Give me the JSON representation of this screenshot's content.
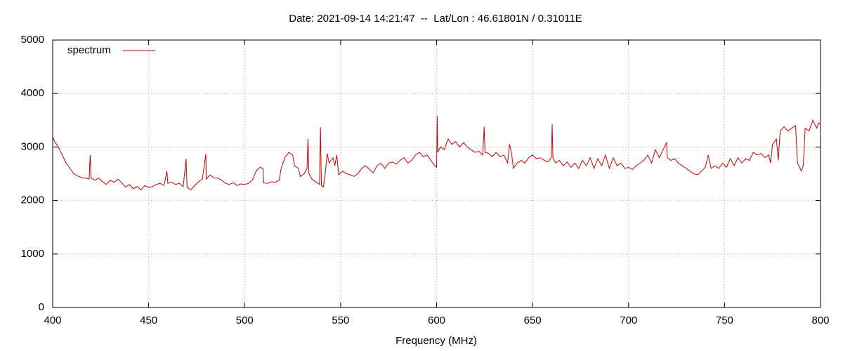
{
  "chart_data": {
    "type": "line",
    "title": "Date: 2021-09-14 14:21:47  --  Lat/Lon : 46.61801N / 0.31011E",
    "x_label": "Frequency (MHz)",
    "x": [
      400,
      401,
      403,
      405,
      407,
      409,
      411,
      413,
      415,
      417,
      419,
      419.5,
      420,
      422,
      424,
      426,
      428,
      430,
      432,
      434,
      436,
      438,
      440,
      442,
      444,
      446,
      448,
      450,
      452,
      454,
      456,
      458,
      459.5,
      460,
      462,
      464,
      466,
      468,
      469.5,
      470,
      472,
      474,
      476,
      478,
      479.8,
      480,
      482,
      484,
      486,
      488,
      490,
      492,
      494,
      496,
      498,
      500,
      502,
      504,
      506,
      508,
      509.5,
      510,
      512,
      514,
      516,
      518,
      519,
      521,
      523,
      525,
      526,
      528,
      529,
      531,
      532.5,
      533,
      533.5,
      535,
      537,
      539,
      539.5,
      540,
      541,
      542,
      543,
      544,
      546,
      547,
      548,
      549,
      551,
      553,
      555,
      557,
      559,
      561,
      563,
      565,
      567,
      569,
      571,
      573,
      575,
      577,
      579,
      581,
      583,
      585,
      587,
      589,
      591,
      593,
      595,
      597,
      599,
      600,
      600.3,
      600.6,
      602,
      604,
      606,
      608,
      610,
      612,
      614,
      616,
      618,
      620,
      622,
      624,
      624.8,
      625.2,
      627,
      629,
      631,
      633,
      635,
      636,
      637,
      638,
      639,
      640,
      642,
      644,
      646,
      648,
      650,
      652,
      654,
      656,
      658,
      659.8,
      660.2,
      660.6,
      662,
      664,
      666,
      668,
      670,
      672,
      674,
      676,
      678,
      680,
      682,
      684,
      686,
      688,
      690,
      692,
      694,
      696,
      698,
      700,
      702,
      704,
      706,
      708,
      710,
      712,
      714,
      716,
      718,
      719.8,
      720.2,
      722,
      724,
      726,
      728,
      730,
      732,
      734,
      736,
      738,
      740,
      741.5,
      743,
      745,
      747,
      749,
      751,
      753,
      755,
      757,
      759,
      761,
      763,
      765,
      767,
      769,
      771,
      773,
      774,
      775,
      777,
      778,
      779,
      781,
      783,
      785,
      787,
      788,
      790,
      791,
      792,
      794,
      796,
      798,
      799,
      800
    ],
    "series": [
      {
        "name": "spectrum",
        "color": "#cc0000",
        "values": [
          3200,
          3100,
          3000,
          2850,
          2700,
          2600,
          2500,
          2460,
          2430,
          2420,
          2400,
          2850,
          2420,
          2380,
          2420,
          2350,
          2300,
          2380,
          2340,
          2400,
          2330,
          2250,
          2300,
          2220,
          2260,
          2200,
          2280,
          2240,
          2260,
          2300,
          2320,
          2280,
          2550,
          2320,
          2340,
          2300,
          2320,
          2260,
          2780,
          2250,
          2200,
          2280,
          2350,
          2400,
          2870,
          2400,
          2480,
          2420,
          2420,
          2380,
          2320,
          2300,
          2330,
          2280,
          2310,
          2300,
          2320,
          2380,
          2550,
          2620,
          2600,
          2330,
          2320,
          2350,
          2340,
          2380,
          2600,
          2800,
          2900,
          2850,
          2650,
          2600,
          2450,
          2500,
          2600,
          3150,
          2500,
          2400,
          2350,
          2300,
          3370,
          2280,
          2250,
          2500,
          2880,
          2700,
          2800,
          2650,
          2850,
          2480,
          2550,
          2500,
          2480,
          2450,
          2500,
          2600,
          2650,
          2580,
          2520,
          2650,
          2700,
          2600,
          2700,
          2720,
          2680,
          2750,
          2800,
          2700,
          2750,
          2850,
          2900,
          2820,
          2850,
          2750,
          2650,
          2620,
          3580,
          2900,
          3000,
          2950,
          3150,
          3050,
          3100,
          3000,
          3080,
          3000,
          2950,
          2900,
          2920,
          2850,
          3380,
          2900,
          2880,
          2820,
          2900,
          2820,
          2850,
          2780,
          2700,
          3050,
          2900,
          2600,
          2700,
          2750,
          2700,
          2800,
          2850,
          2780,
          2800,
          2750,
          2720,
          2800,
          3430,
          2800,
          2700,
          2750,
          2650,
          2720,
          2620,
          2700,
          2600,
          2750,
          2650,
          2800,
          2600,
          2780,
          2650,
          2850,
          2600,
          2800,
          2650,
          2700,
          2600,
          2620,
          2580,
          2650,
          2700,
          2750,
          2850,
          2700,
          2950,
          2800,
          2950,
          3080,
          2800,
          2750,
          2780,
          2700,
          2650,
          2600,
          2550,
          2500,
          2480,
          2550,
          2620,
          2850,
          2600,
          2650,
          2600,
          2700,
          2620,
          2780,
          2650,
          2800,
          2700,
          2780,
          2750,
          2900,
          2850,
          2880,
          2800,
          2850,
          2700,
          3050,
          3150,
          2750,
          3300,
          3380,
          3300,
          3350,
          3400,
          2700,
          2550,
          2650,
          3350,
          3300,
          3500,
          3350,
          3450,
          3420
        ]
      }
    ],
    "xlim": [
      400,
      800
    ],
    "xticks": [
      400,
      450,
      500,
      550,
      600,
      650,
      700,
      750,
      800
    ],
    "ylim": [
      0,
      5000
    ],
    "yticks": [
      0,
      1000,
      2000,
      3000,
      4000,
      5000
    ],
    "grid": true,
    "legend": "top-left"
  }
}
